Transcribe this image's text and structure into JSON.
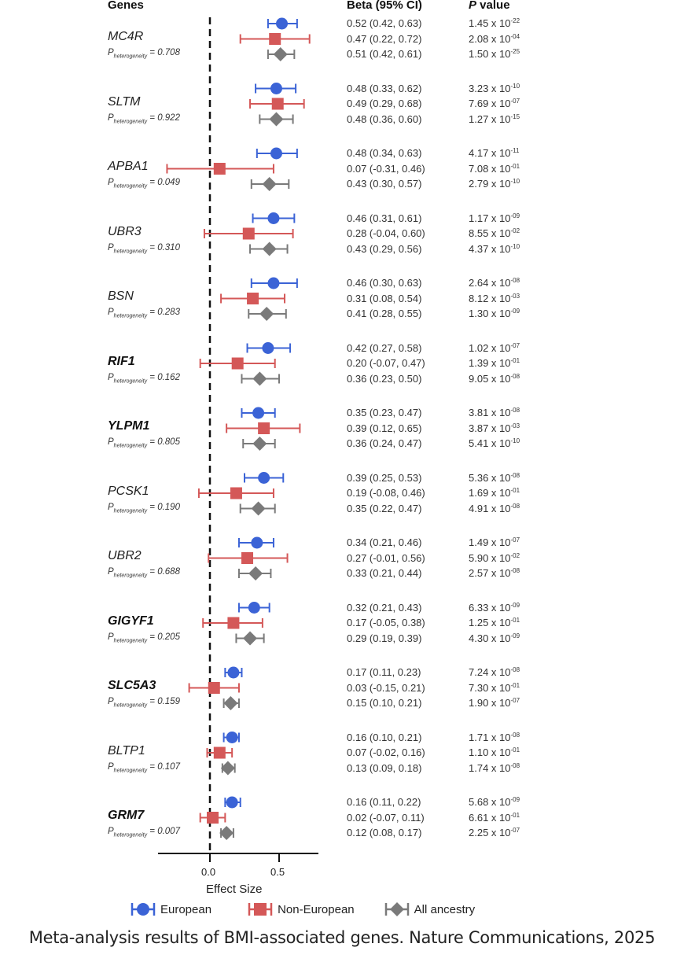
{
  "headers": {
    "genes": "Genes",
    "beta": "Beta (95% CI)",
    "p_value_italic": "P",
    "p_value_rest": " value"
  },
  "axis": {
    "xlabel": "Effect Size",
    "ticks": [
      "0.0",
      "0.5"
    ]
  },
  "legend": [
    {
      "label": "European",
      "color": "#3b63d6",
      "shape": "circle"
    },
    {
      "label": "Non-European",
      "color": "#d45858",
      "shape": "square"
    },
    {
      "label": "All ancestry",
      "color": "#7a7a7a",
      "shape": "diamond"
    }
  ],
  "caption": "Meta-analysis results of BMI-associated genes. Nature Communications, 2025",
  "chart_data": {
    "type": "forest",
    "title": "",
    "xlabel": "Effect Size",
    "ylabel": "Genes",
    "xlim": [
      -0.37,
      0.78
    ],
    "xticks": [
      0.0,
      0.5
    ],
    "reference_line": 0.0,
    "legend_position": "bottom",
    "series_names": [
      "European",
      "Non-European",
      "All ancestry"
    ],
    "genes": [
      {
        "gene": "MC4R",
        "bold": false,
        "p_het": "0.708",
        "rows": [
          {
            "beta": 0.52,
            "lo": 0.42,
            "hi": 0.63,
            "text": "0.52 (0.42, 0.63)",
            "p_m": "1.45",
            "p_e": "-22"
          },
          {
            "beta": 0.47,
            "lo": 0.22,
            "hi": 0.72,
            "text": "0.47 (0.22, 0.72)",
            "p_m": "2.08",
            "p_e": "-04"
          },
          {
            "beta": 0.51,
            "lo": 0.42,
            "hi": 0.61,
            "text": "0.51 (0.42, 0.61)",
            "p_m": "1.50",
            "p_e": "-25"
          }
        ]
      },
      {
        "gene": "SLTM",
        "bold": false,
        "p_het": "0.922",
        "rows": [
          {
            "beta": 0.48,
            "lo": 0.33,
            "hi": 0.62,
            "text": "0.48 (0.33, 0.62)",
            "p_m": "3.23",
            "p_e": "-10"
          },
          {
            "beta": 0.49,
            "lo": 0.29,
            "hi": 0.68,
            "text": "0.49 (0.29, 0.68)",
            "p_m": "7.69",
            "p_e": "-07"
          },
          {
            "beta": 0.48,
            "lo": 0.36,
            "hi": 0.6,
            "text": "0.48 (0.36, 0.60)",
            "p_m": "1.27",
            "p_e": "-15"
          }
        ]
      },
      {
        "gene": "APBA1",
        "bold": false,
        "p_het": "0.049",
        "rows": [
          {
            "beta": 0.48,
            "lo": 0.34,
            "hi": 0.63,
            "text": "0.48 (0.34, 0.63)",
            "p_m": "4.17",
            "p_e": "-11"
          },
          {
            "beta": 0.07,
            "lo": -0.31,
            "hi": 0.46,
            "text": "0.07 (-0.31, 0.46)",
            "p_m": "7.08",
            "p_e": "-01"
          },
          {
            "beta": 0.43,
            "lo": 0.3,
            "hi": 0.57,
            "text": "0.43 (0.30, 0.57)",
            "p_m": "2.79",
            "p_e": "-10"
          }
        ]
      },
      {
        "gene": "UBR3",
        "bold": false,
        "p_het": "0.310",
        "rows": [
          {
            "beta": 0.46,
            "lo": 0.31,
            "hi": 0.61,
            "text": "0.46 (0.31, 0.61)",
            "p_m": "1.17",
            "p_e": "-09"
          },
          {
            "beta": 0.28,
            "lo": -0.04,
            "hi": 0.6,
            "text": "0.28 (-0.04, 0.60)",
            "p_m": "8.55",
            "p_e": "-02"
          },
          {
            "beta": 0.43,
            "lo": 0.29,
            "hi": 0.56,
            "text": "0.43 (0.29, 0.56)",
            "p_m": "4.37",
            "p_e": "-10"
          }
        ]
      },
      {
        "gene": "BSN",
        "bold": false,
        "p_het": "0.283",
        "rows": [
          {
            "beta": 0.46,
            "lo": 0.3,
            "hi": 0.63,
            "text": "0.46 (0.30, 0.63)",
            "p_m": "2.64",
            "p_e": "-08"
          },
          {
            "beta": 0.31,
            "lo": 0.08,
            "hi": 0.54,
            "text": "0.31 (0.08, 0.54)",
            "p_m": "8.12",
            "p_e": "-03"
          },
          {
            "beta": 0.41,
            "lo": 0.28,
            "hi": 0.55,
            "text": "0.41 (0.28, 0.55)",
            "p_m": "1.30",
            "p_e": "-09"
          }
        ]
      },
      {
        "gene": "RIF1",
        "bold": true,
        "p_het": "0.162",
        "rows": [
          {
            "beta": 0.42,
            "lo": 0.27,
            "hi": 0.58,
            "text": "0.42 (0.27, 0.58)",
            "p_m": "1.02",
            "p_e": "-07"
          },
          {
            "beta": 0.2,
            "lo": -0.07,
            "hi": 0.47,
            "text": "0.20 (-0.07, 0.47)",
            "p_m": "1.39",
            "p_e": "-01"
          },
          {
            "beta": 0.36,
            "lo": 0.23,
            "hi": 0.5,
            "text": "0.36 (0.23, 0.50)",
            "p_m": "9.05",
            "p_e": "-08"
          }
        ]
      },
      {
        "gene": "YLPM1",
        "bold": true,
        "p_het": "0.805",
        "rows": [
          {
            "beta": 0.35,
            "lo": 0.23,
            "hi": 0.47,
            "text": "0.35 (0.23, 0.47)",
            "p_m": "3.81",
            "p_e": "-08"
          },
          {
            "beta": 0.39,
            "lo": 0.12,
            "hi": 0.65,
            "text": "0.39 (0.12, 0.65)",
            "p_m": "3.87",
            "p_e": "-03"
          },
          {
            "beta": 0.36,
            "lo": 0.24,
            "hi": 0.47,
            "text": "0.36 (0.24, 0.47)",
            "p_m": "5.41",
            "p_e": "-10"
          }
        ]
      },
      {
        "gene": "PCSK1",
        "bold": false,
        "p_het": "0.190",
        "rows": [
          {
            "beta": 0.39,
            "lo": 0.25,
            "hi": 0.53,
            "text": "0.39 (0.25, 0.53)",
            "p_m": "5.36",
            "p_e": "-08"
          },
          {
            "beta": 0.19,
            "lo": -0.08,
            "hi": 0.46,
            "text": "0.19 (-0.08, 0.46)",
            "p_m": "1.69",
            "p_e": "-01"
          },
          {
            "beta": 0.35,
            "lo": 0.22,
            "hi": 0.47,
            "text": "0.35 (0.22, 0.47)",
            "p_m": "4.91",
            "p_e": "-08"
          }
        ]
      },
      {
        "gene": "UBR2",
        "bold": false,
        "p_het": "0.688",
        "rows": [
          {
            "beta": 0.34,
            "lo": 0.21,
            "hi": 0.46,
            "text": "0.34 (0.21, 0.46)",
            "p_m": "1.49",
            "p_e": "-07"
          },
          {
            "beta": 0.27,
            "lo": -0.01,
            "hi": 0.56,
            "text": "0.27 (-0.01, 0.56)",
            "p_m": "5.90",
            "p_e": "-02"
          },
          {
            "beta": 0.33,
            "lo": 0.21,
            "hi": 0.44,
            "text": "0.33 (0.21, 0.44)",
            "p_m": "2.57",
            "p_e": "-08"
          }
        ]
      },
      {
        "gene": "GIGYF1",
        "bold": true,
        "p_het": "0.205",
        "rows": [
          {
            "beta": 0.32,
            "lo": 0.21,
            "hi": 0.43,
            "text": "0.32 (0.21, 0.43)",
            "p_m": "6.33",
            "p_e": "-09"
          },
          {
            "beta": 0.17,
            "lo": -0.05,
            "hi": 0.38,
            "text": "0.17 (-0.05, 0.38)",
            "p_m": "1.25",
            "p_e": "-01"
          },
          {
            "beta": 0.29,
            "lo": 0.19,
            "hi": 0.39,
            "text": "0.29 (0.19, 0.39)",
            "p_m": "4.30",
            "p_e": "-09"
          }
        ]
      },
      {
        "gene": "SLC5A3",
        "bold": true,
        "p_het": "0.159",
        "rows": [
          {
            "beta": 0.17,
            "lo": 0.11,
            "hi": 0.23,
            "text": "0.17 (0.11, 0.23)",
            "p_m": "7.24",
            "p_e": "-08"
          },
          {
            "beta": 0.03,
            "lo": -0.15,
            "hi": 0.21,
            "text": "0.03 (-0.15, 0.21)",
            "p_m": "7.30",
            "p_e": "-01"
          },
          {
            "beta": 0.15,
            "lo": 0.1,
            "hi": 0.21,
            "text": "0.15 (0.10, 0.21)",
            "p_m": "1.90",
            "p_e": "-07"
          }
        ]
      },
      {
        "gene": "BLTP1",
        "bold": false,
        "p_het": "0.107",
        "rows": [
          {
            "beta": 0.16,
            "lo": 0.1,
            "hi": 0.21,
            "text": "0.16 (0.10, 0.21)",
            "p_m": "1.71",
            "p_e": "-08"
          },
          {
            "beta": 0.07,
            "lo": -0.02,
            "hi": 0.16,
            "text": "0.07 (-0.02, 0.16)",
            "p_m": "1.10",
            "p_e": "-01"
          },
          {
            "beta": 0.13,
            "lo": 0.09,
            "hi": 0.18,
            "text": "0.13 (0.09, 0.18)",
            "p_m": "1.74",
            "p_e": "-08"
          }
        ]
      },
      {
        "gene": "GRM7",
        "bold": true,
        "p_het": "0.007",
        "rows": [
          {
            "beta": 0.16,
            "lo": 0.11,
            "hi": 0.22,
            "text": "0.16 (0.11, 0.22)",
            "p_m": "5.68",
            "p_e": "-09"
          },
          {
            "beta": 0.02,
            "lo": -0.07,
            "hi": 0.11,
            "text": "0.02 (-0.07, 0.11)",
            "p_m": "6.61",
            "p_e": "-01"
          },
          {
            "beta": 0.12,
            "lo": 0.08,
            "hi": 0.17,
            "text": "0.12 (0.08, 0.17)",
            "p_m": "2.25",
            "p_e": "-07"
          }
        ]
      }
    ]
  }
}
